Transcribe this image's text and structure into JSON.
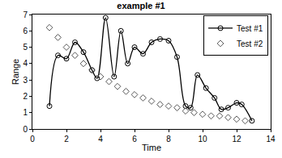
{
  "chart_data": {
    "type": "line",
    "title": "example #1",
    "x_label": "Time",
    "y_label": "Range",
    "xlim": [
      0,
      14
    ],
    "xticks": [
      0,
      2,
      4,
      6,
      8,
      10,
      12,
      14
    ],
    "ylim": [
      0,
      7
    ],
    "yticks": [
      0,
      1,
      2,
      3,
      4,
      5,
      6,
      7
    ],
    "grid": false,
    "legend": "top right",
    "series": [
      {
        "name": "Test #1",
        "color": "#000000",
        "marker": "circle-open",
        "line_style": "spline",
        "x": [
          1,
          1.5,
          2,
          2.5,
          3,
          3.5,
          3.8,
          4.3,
          4.8,
          5.2,
          5.6,
          6,
          6.5,
          7,
          7.5,
          8,
          8.5,
          9,
          9.3,
          9.7,
          10.2,
          10.7,
          11.1,
          11.5,
          12,
          12.3,
          12.9
        ],
        "values": [
          1.4,
          4.5,
          4.3,
          5.3,
          4.7,
          3.6,
          3.1,
          6.8,
          3.2,
          6.0,
          4.0,
          5.0,
          4.6,
          5.3,
          5.5,
          5.4,
          4.4,
          1.4,
          1.3,
          3.3,
          2.5,
          1.9,
          1.2,
          1.3,
          1.6,
          1.5,
          0.5
        ]
      },
      {
        "name": "Test #2",
        "color": "#555555",
        "marker": "diamond-open",
        "line_style": "none",
        "x": [
          1,
          1.5,
          2,
          2.5,
          3,
          3.5,
          4,
          4.5,
          5,
          5.5,
          6,
          6.5,
          7,
          7.5,
          8,
          8.5,
          9,
          9.5,
          10,
          10.5,
          11,
          11.5,
          12,
          12.5
        ],
        "values": [
          6.2,
          5.6,
          5.0,
          4.5,
          4.0,
          3.6,
          3.2,
          2.9,
          2.6,
          2.3,
          2.1,
          1.9,
          1.7,
          1.5,
          1.4,
          1.3,
          1.1,
          1.0,
          0.9,
          0.8,
          0.8,
          0.7,
          0.6,
          0.5
        ]
      }
    ]
  }
}
